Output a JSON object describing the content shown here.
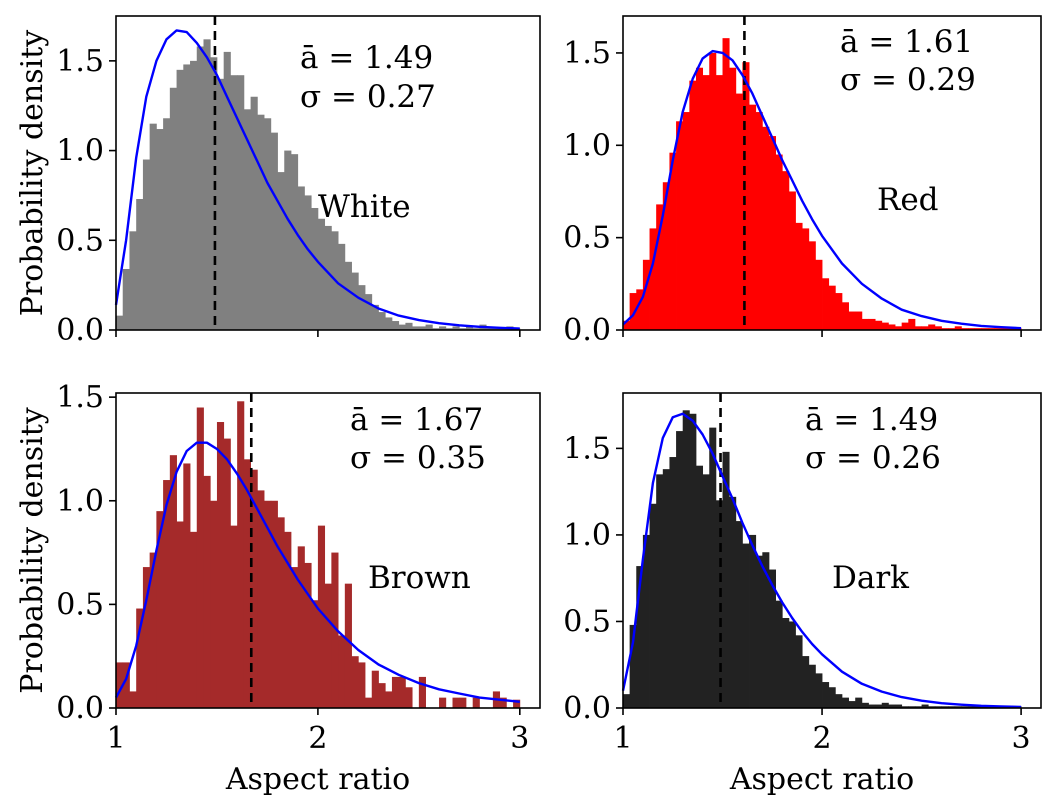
{
  "chart_data": [
    {
      "type": "bar",
      "panel": "top-left",
      "title": "White",
      "series_label": "White",
      "bar_color": "#808080",
      "fit_color": "#0000ff",
      "mean_line_color": "#000000",
      "xlabel": "",
      "ylabel": "Probability density",
      "xlim": [
        1.0,
        3.1
      ],
      "ylim": [
        0,
        1.75
      ],
      "yticks": [
        0.0,
        0.5,
        1.0,
        1.5
      ],
      "ytick_labels": [
        "0.0",
        "0.5",
        "1.0",
        "1.5"
      ],
      "xticks": [
        1,
        2,
        3
      ],
      "xtick_labels": [],
      "mean": 1.49,
      "mean_text": "ā = 1.49",
      "sigma_text": "σ = 0.27",
      "bin_edges": [
        1.0,
        3.0
      ],
      "values": [
        0.08,
        0.34,
        0.55,
        0.73,
        0.95,
        1.15,
        1.12,
        1.18,
        1.35,
        1.45,
        1.48,
        1.5,
        1.58,
        1.62,
        1.52,
        1.4,
        1.55,
        1.42,
        1.42,
        1.23,
        1.3,
        1.2,
        1.18,
        1.1,
        0.88,
        1.0,
        0.98,
        0.8,
        0.75,
        0.68,
        0.62,
        0.58,
        0.55,
        0.48,
        0.38,
        0.32,
        0.25,
        0.2,
        0.14,
        0.1,
        0.07,
        0.05,
        0.03,
        0.04,
        0.02,
        0.02,
        0.03,
        0.01,
        0.02,
        0.01,
        0.02,
        0.01,
        0.02,
        0.01,
        0.03,
        0.01,
        0.01,
        0.01,
        0.02,
        0.01
      ],
      "fit_x": [
        1.0,
        1.05,
        1.1,
        1.15,
        1.2,
        1.25,
        1.3,
        1.35,
        1.4,
        1.45,
        1.5,
        1.55,
        1.6,
        1.65,
        1.7,
        1.75,
        1.8,
        1.85,
        1.9,
        1.95,
        2.0,
        2.1,
        2.2,
        2.3,
        2.4,
        2.5,
        2.6,
        2.7,
        2.8,
        2.9,
        3.0
      ],
      "fit_y": [
        0.14,
        0.5,
        0.96,
        1.3,
        1.5,
        1.62,
        1.67,
        1.66,
        1.6,
        1.52,
        1.42,
        1.3,
        1.18,
        1.06,
        0.94,
        0.82,
        0.72,
        0.62,
        0.53,
        0.45,
        0.38,
        0.26,
        0.18,
        0.12,
        0.08,
        0.055,
        0.038,
        0.026,
        0.018,
        0.012,
        0.008
      ]
    },
    {
      "type": "bar",
      "panel": "top-right",
      "title": "Red",
      "series_label": "Red",
      "bar_color": "#ff0000",
      "fit_color": "#0000ff",
      "mean_line_color": "#000000",
      "xlabel": "",
      "ylabel": "",
      "xlim": [
        1.0,
        3.1
      ],
      "ylim": [
        0,
        1.7
      ],
      "yticks": [
        0.0,
        0.5,
        1.0,
        1.5
      ],
      "ytick_labels": [
        "0.0",
        "0.5",
        "1.0",
        "1.5"
      ],
      "xticks": [
        1,
        2,
        3
      ],
      "xtick_labels": [],
      "mean": 1.61,
      "mean_text": "ā = 1.61",
      "sigma_text": "σ = 0.29",
      "bin_edges": [
        1.0,
        3.0
      ],
      "values": [
        0.05,
        0.2,
        0.22,
        0.38,
        0.55,
        0.68,
        0.8,
        0.96,
        1.13,
        1.18,
        1.35,
        1.42,
        1.38,
        1.5,
        1.38,
        1.58,
        1.42,
        1.28,
        1.45,
        1.22,
        1.18,
        1.1,
        1.05,
        0.95,
        0.86,
        0.75,
        0.58,
        0.55,
        0.48,
        0.38,
        0.28,
        0.24,
        0.2,
        0.15,
        0.1,
        0.1,
        0.06,
        0.06,
        0.05,
        0.04,
        0.03,
        0.02,
        0.04,
        0.06,
        0.02,
        0.02,
        0.03,
        0.02,
        0.01,
        0.01,
        0.02,
        0.01,
        0.01,
        0.01,
        0.01,
        0.01,
        0.01,
        0.01,
        0.01,
        0.01
      ],
      "fit_x": [
        1.0,
        1.05,
        1.1,
        1.15,
        1.2,
        1.25,
        1.3,
        1.35,
        1.4,
        1.45,
        1.5,
        1.55,
        1.6,
        1.65,
        1.7,
        1.75,
        1.8,
        1.85,
        1.9,
        1.95,
        2.0,
        2.1,
        2.2,
        2.3,
        2.4,
        2.5,
        2.6,
        2.7,
        2.8,
        2.9,
        3.0
      ],
      "fit_y": [
        0.03,
        0.08,
        0.18,
        0.36,
        0.62,
        0.92,
        1.18,
        1.36,
        1.47,
        1.51,
        1.5,
        1.46,
        1.38,
        1.28,
        1.16,
        1.04,
        0.92,
        0.81,
        0.7,
        0.6,
        0.51,
        0.36,
        0.25,
        0.17,
        0.11,
        0.075,
        0.05,
        0.034,
        0.022,
        0.015,
        0.01
      ]
    },
    {
      "type": "bar",
      "panel": "bottom-left",
      "title": "Brown",
      "series_label": "Brown",
      "bar_color": "#a52a2a",
      "fit_color": "#0000ff",
      "mean_line_color": "#000000",
      "xlabel": "Aspect ratio",
      "ylabel": "Probability density",
      "xlim": [
        1.0,
        3.1
      ],
      "ylim": [
        0,
        1.52
      ],
      "yticks": [
        0.0,
        0.5,
        1.0,
        1.5
      ],
      "ytick_labels": [
        "0.0",
        "0.5",
        "1.0",
        "1.5"
      ],
      "xticks": [
        1,
        2,
        3
      ],
      "xtick_labels": [
        "1",
        "2",
        "3"
      ],
      "mean": 1.67,
      "mean_text": "ā = 1.67",
      "sigma_text": "σ = 0.35",
      "bin_edges": [
        1.0,
        3.0
      ],
      "values": [
        0.22,
        0.22,
        0.08,
        0.48,
        0.68,
        0.75,
        0.95,
        1.1,
        1.22,
        0.9,
        1.18,
        0.85,
        1.45,
        1.12,
        1.0,
        1.38,
        1.3,
        0.88,
        1.48,
        1.2,
        1.15,
        1.05,
        1.0,
        1.0,
        0.92,
        0.85,
        0.68,
        0.78,
        0.7,
        0.52,
        0.88,
        0.6,
        0.75,
        0.35,
        0.6,
        0.25,
        0.22,
        0.05,
        0.18,
        0.12,
        0.08,
        0.15,
        0.15,
        0.1,
        0.0,
        0.15,
        0.0,
        0.0,
        0.05,
        0.0,
        0.05,
        0.05,
        0.0,
        0.05,
        0.0,
        0.0,
        0.08,
        0.05,
        0.0,
        0.04
      ],
      "fit_x": [
        1.0,
        1.05,
        1.1,
        1.15,
        1.2,
        1.25,
        1.3,
        1.35,
        1.4,
        1.45,
        1.5,
        1.55,
        1.6,
        1.65,
        1.7,
        1.75,
        1.8,
        1.85,
        1.9,
        1.95,
        2.0,
        2.1,
        2.2,
        2.3,
        2.4,
        2.5,
        2.6,
        2.7,
        2.8,
        2.9,
        3.0
      ],
      "fit_y": [
        0.05,
        0.14,
        0.3,
        0.52,
        0.76,
        0.98,
        1.14,
        1.24,
        1.28,
        1.28,
        1.25,
        1.2,
        1.13,
        1.05,
        0.96,
        0.87,
        0.78,
        0.7,
        0.62,
        0.55,
        0.48,
        0.37,
        0.28,
        0.21,
        0.16,
        0.12,
        0.09,
        0.07,
        0.05,
        0.04,
        0.03
      ]
    },
    {
      "type": "bar",
      "panel": "bottom-right",
      "title": "Dark",
      "series_label": "Dark",
      "bar_color": "#222222",
      "fit_color": "#0000ff",
      "mean_line_color": "#000000",
      "xlabel": "Aspect ratio",
      "ylabel": "",
      "xlim": [
        1.0,
        3.1
      ],
      "ylim": [
        0,
        1.82
      ],
      "yticks": [
        0.0,
        0.5,
        1.0,
        1.5
      ],
      "ytick_labels": [
        "0.0",
        "0.5",
        "1.0",
        "1.5"
      ],
      "xticks": [
        1,
        2,
        3
      ],
      "xtick_labels": [
        "1",
        "2",
        "3"
      ],
      "mean": 1.49,
      "mean_text": "ā = 1.49",
      "sigma_text": "σ = 0.26",
      "bin_edges": [
        1.0,
        3.0
      ],
      "values": [
        0.08,
        0.48,
        0.82,
        1.0,
        1.18,
        1.35,
        1.38,
        1.45,
        1.6,
        1.72,
        1.7,
        1.4,
        1.35,
        1.62,
        1.2,
        1.48,
        1.22,
        1.08,
        0.95,
        1.0,
        0.88,
        0.9,
        0.8,
        0.62,
        0.52,
        0.5,
        0.42,
        0.3,
        0.25,
        0.2,
        0.15,
        0.12,
        0.08,
        0.06,
        0.04,
        0.06,
        0.03,
        0.02,
        0.02,
        0.03,
        0.02,
        0.02,
        0.01,
        0.01,
        0.01,
        0.02,
        0.01,
        0.01,
        0.01,
        0.01,
        0.01,
        0.01,
        0.01,
        0.01,
        0.01,
        0.01,
        0.01,
        0.01,
        0.01,
        0.01
      ],
      "fit_x": [
        1.0,
        1.05,
        1.1,
        1.15,
        1.2,
        1.25,
        1.3,
        1.35,
        1.4,
        1.45,
        1.5,
        1.55,
        1.6,
        1.65,
        1.7,
        1.75,
        1.8,
        1.85,
        1.9,
        1.95,
        2.0,
        2.1,
        2.2,
        2.3,
        2.4,
        2.5,
        2.6,
        2.7,
        2.8,
        2.9,
        3.0
      ],
      "fit_y": [
        0.1,
        0.38,
        0.86,
        1.3,
        1.56,
        1.68,
        1.7,
        1.66,
        1.58,
        1.47,
        1.34,
        1.21,
        1.07,
        0.94,
        0.82,
        0.71,
        0.61,
        0.52,
        0.44,
        0.37,
        0.31,
        0.21,
        0.14,
        0.095,
        0.063,
        0.042,
        0.028,
        0.019,
        0.013,
        0.009,
        0.006
      ]
    }
  ]
}
